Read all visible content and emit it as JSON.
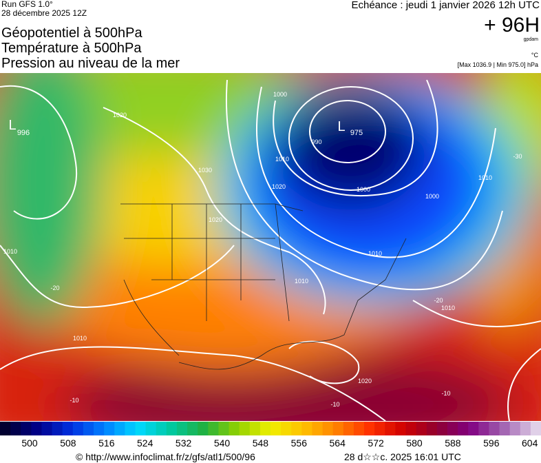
{
  "header": {
    "run": "Run GFS 1.0°",
    "run_date": "28 décembre 2025 12Z",
    "titles": [
      "Géopotentiel à 500hPa",
      "Température à 500hPa",
      "Pression au niveau de la mer"
    ],
    "valid_time": "Echéance : jeudi 1 janvier 2026 12h UTC",
    "lead": "+ 96H",
    "unit_geo": "gpdam",
    "unit_temp": "°C",
    "pressure_range": "[Max 1036.9 | Min 975.0] hPa"
  },
  "map": {
    "labels": [
      "L",
      "996",
      "L",
      "975",
      "1000",
      "990",
      "1010",
      "1020",
      "1030",
      "1020",
      "1020",
      "1000",
      "1010",
      "1000",
      "1010",
      "1010",
      "1020",
      "1010",
      "1010",
      "1010",
      "-20",
      "-30",
      "-20",
      "-10",
      "-10",
      "-10"
    ]
  },
  "colorbar": {
    "labels": [
      "500",
      "508",
      "516",
      "524",
      "532",
      "540",
      "548",
      "556",
      "564",
      "572",
      "580",
      "588",
      "596",
      "604"
    ]
  },
  "footer": {
    "source": "© http://www.infoclimat.fr/z/gfs/atl1/500/96",
    "generated": "28 d☆☆c. 2025 16:01 UTC"
  }
}
